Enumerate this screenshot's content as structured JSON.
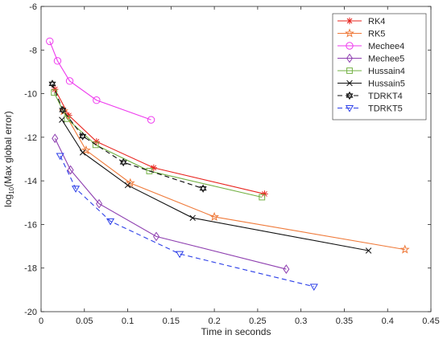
{
  "chart_data": {
    "type": "line",
    "xlabel": "Time in seconds",
    "ylabel": "log10(Max global error)",
    "ylabel_parts": {
      "prefix": "log",
      "subscript": "10",
      "suffix": "(Max global error)"
    },
    "xlim": [
      0,
      0.45
    ],
    "ylim": [
      -20,
      -6
    ],
    "xticks": [
      0,
      0.05,
      0.1,
      0.15,
      0.2,
      0.25,
      0.3,
      0.35,
      0.4,
      0.45
    ],
    "xtick_labels": [
      "0",
      "0.05",
      "0.1",
      "0.15",
      "0.2",
      "0.25",
      "0.3",
      "0.35",
      "0.4",
      "0.45"
    ],
    "yticks": [
      -20,
      -18,
      -16,
      -14,
      -12,
      -10,
      -8,
      -6
    ],
    "ytick_labels": [
      "-20",
      "-18",
      "-16",
      "-14",
      "-12",
      "-10",
      "-8",
      "-6"
    ],
    "grid": false,
    "legend_position": "top-right",
    "series": [
      {
        "name": "RK4",
        "color": "#e8241e",
        "marker": "asterisk",
        "dash": "solid",
        "points": [
          [
            0.016,
            -9.8
          ],
          [
            0.032,
            -11.0
          ],
          [
            0.064,
            -12.2
          ],
          [
            0.13,
            -13.4
          ],
          [
            0.258,
            -14.6
          ]
        ]
      },
      {
        "name": "RK5",
        "color": "#ef7a3a",
        "marker": "star",
        "dash": "solid",
        "points": [
          [
            0.026,
            -10.8
          ],
          [
            0.052,
            -12.6
          ],
          [
            0.103,
            -14.1
          ],
          [
            0.2,
            -15.65
          ],
          [
            0.42,
            -17.15
          ]
        ]
      },
      {
        "name": "Mechee4",
        "color": "#ee3aee",
        "marker": "circle",
        "dash": "solid",
        "points": [
          [
            0.01,
            -7.6
          ],
          [
            0.019,
            -8.5
          ],
          [
            0.033,
            -9.42
          ],
          [
            0.064,
            -10.3
          ],
          [
            0.127,
            -11.2
          ]
        ]
      },
      {
        "name": "Mechee5",
        "color": "#8e3fb0",
        "marker": "diamond",
        "dash": "solid",
        "points": [
          [
            0.016,
            -12.05
          ],
          [
            0.034,
            -13.5
          ],
          [
            0.067,
            -15.05
          ],
          [
            0.133,
            -16.55
          ],
          [
            0.283,
            -18.05
          ]
        ]
      },
      {
        "name": "Hussain4",
        "color": "#72b043",
        "marker": "square",
        "dash": "solid",
        "points": [
          [
            0.015,
            -9.95
          ],
          [
            0.03,
            -11.15
          ],
          [
            0.063,
            -12.35
          ],
          [
            0.125,
            -13.55
          ],
          [
            0.255,
            -14.75
          ]
        ]
      },
      {
        "name": "Hussain5",
        "color": "#111111",
        "marker": "x",
        "dash": "solid",
        "points": [
          [
            0.024,
            -11.2
          ],
          [
            0.048,
            -12.7
          ],
          [
            0.1,
            -14.2
          ],
          [
            0.175,
            -15.7
          ],
          [
            0.378,
            -17.2
          ]
        ]
      },
      {
        "name": "TDRKT4",
        "color": "#111111",
        "marker": "hexagram",
        "dash": "dashed",
        "points": [
          [
            0.013,
            -9.55
          ],
          [
            0.025,
            -10.75
          ],
          [
            0.048,
            -11.95
          ],
          [
            0.095,
            -13.15
          ],
          [
            0.187,
            -14.35
          ]
        ]
      },
      {
        "name": "TDRKT5",
        "color": "#2c3fe8",
        "marker": "triangle-down",
        "dash": "dashed",
        "points": [
          [
            0.022,
            -12.85
          ],
          [
            0.04,
            -14.35
          ],
          [
            0.08,
            -15.85
          ],
          [
            0.16,
            -17.35
          ],
          [
            0.315,
            -18.85
          ]
        ]
      }
    ]
  }
}
